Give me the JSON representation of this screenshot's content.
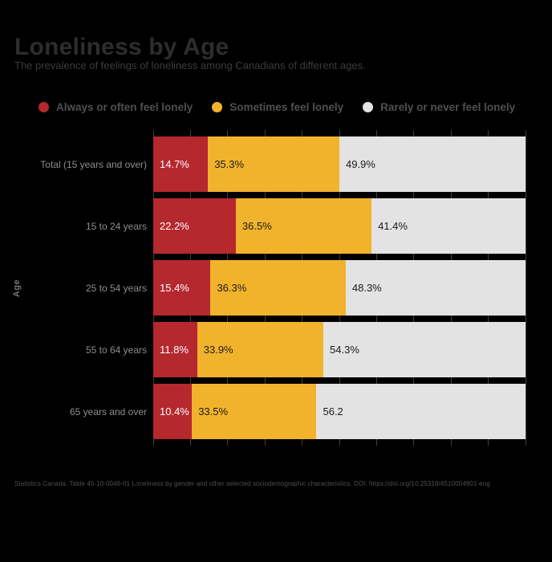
{
  "title": "Loneliness by Age",
  "subtitle": "The prevalence of feelings of loneliness among Canadians of different ages.",
  "y_axis_label": "Age",
  "footer": "Statistics Canada. Table 45-10-0049-01 Loneliness by gender and other selected sociodemographic characteristics. DOI: https://doi.org/10.25318/4510004901-eng",
  "legend": [
    {
      "label": "Always or often feel lonely",
      "color": "#b5282e"
    },
    {
      "label": "Sometimes feel lonely",
      "color": "#f2b32c"
    },
    {
      "label": "Rarely or never feel lonely",
      "color": "#e3e3e3"
    }
  ],
  "colors": {
    "background": "#000000",
    "title": "#2d2d2d",
    "subtitle": "#3c3c3c",
    "legend_text": "#4f4f4f",
    "category_label": "#8d8d8d",
    "gridline": "#414141",
    "footer": "#4f4f4f"
  },
  "chart_data": {
    "type": "bar",
    "orientation": "horizontal",
    "stacked": true,
    "title": "Loneliness by Age",
    "xlabel": "",
    "ylabel": "Age",
    "xlim": [
      0,
      100
    ],
    "gridlines_every": 10,
    "legend_position": "top",
    "categories": [
      "Total (15 years and over)",
      "15 to 24 years",
      "25 to 54 years",
      "55 to 64 years",
      "65 years and over"
    ],
    "series": [
      {
        "name": "Always or often feel lonely",
        "color": "#b5282e",
        "text_color": "#ffffff",
        "values": [
          14.7,
          22.2,
          15.4,
          11.8,
          10.4
        ],
        "labels": [
          "14.7%",
          "22.2%",
          "15.4%",
          "11.8%",
          "10.4%"
        ]
      },
      {
        "name": "Sometimes feel lonely",
        "color": "#f2b32c",
        "text_color": "#1a1a1a",
        "values": [
          35.3,
          36.5,
          36.3,
          33.9,
          33.5
        ],
        "labels": [
          "35.3%",
          "36.5%",
          "36.3%",
          "33.9%",
          "33.5%"
        ]
      },
      {
        "name": "Rarely or never feel lonely",
        "color": "#e3e3e3",
        "text_color": "#1a1a1a",
        "values": [
          49.9,
          41.4,
          48.3,
          54.3,
          56.2
        ],
        "labels": [
          "49.9%",
          "41.4%",
          "48.3%",
          "54.3%",
          "56.2"
        ]
      }
    ]
  }
}
